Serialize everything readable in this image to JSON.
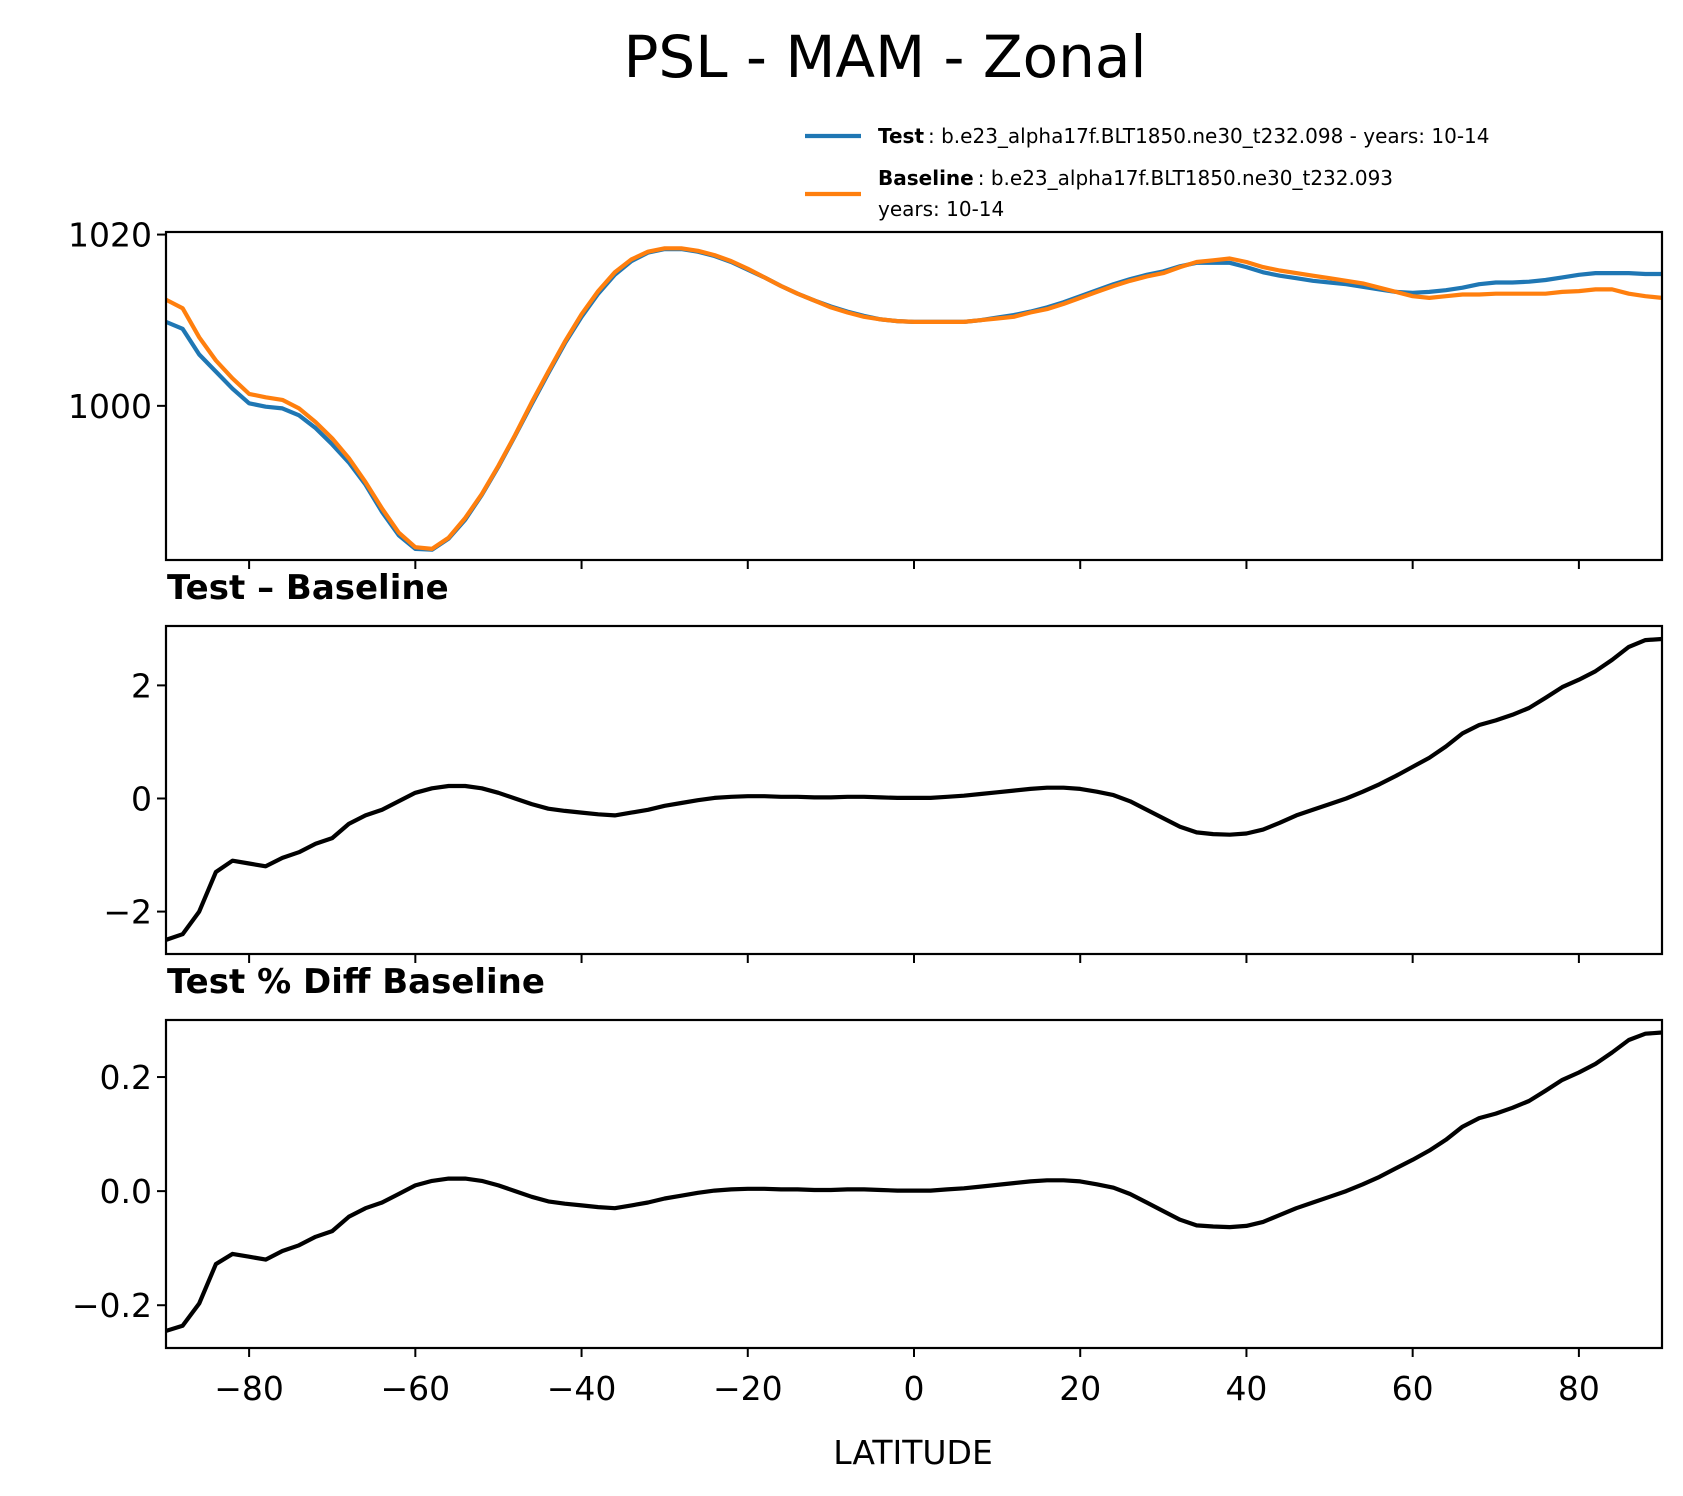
{
  "chart_data": [
    {
      "type": "line",
      "id": "abs",
      "title": "PSL - MAM - Zonal",
      "xlabel": "",
      "ylabel": "",
      "xlim": [
        -90,
        90
      ],
      "ylim": [
        982,
        1020.3
      ],
      "yticks": [
        1000,
        1020
      ],
      "ytick_labels": [
        "1000",
        "1020"
      ],
      "xticks": [
        -80,
        -60,
        -40,
        -20,
        0,
        20,
        40,
        60,
        80
      ],
      "legend": {
        "placement": "upper-right, above plot",
        "entries": [
          {
            "label_bold": "Test",
            "label": ": b.e23_alpha17f.BLT1850.ne30_t232.098 - years: 10-14",
            "label_line2": ""
          },
          {
            "label_bold": "Baseline",
            "label": ": b.e23_alpha17f.BLT1850.ne30_t232.093",
            "label_line2": "years: 10-14"
          }
        ]
      },
      "x": [
        -90,
        -88,
        -86,
        -84,
        -82,
        -80,
        -78,
        -76,
        -74,
        -72,
        -70,
        -68,
        -66,
        -64,
        -62,
        -60,
        -58,
        -56,
        -54,
        -52,
        -50,
        -48,
        -46,
        -44,
        -42,
        -40,
        -38,
        -36,
        -34,
        -32,
        -30,
        -28,
        -26,
        -24,
        -22,
        -20,
        -18,
        -16,
        -14,
        -12,
        -10,
        -8,
        -6,
        -4,
        -2,
        0,
        2,
        4,
        6,
        8,
        10,
        12,
        14,
        16,
        18,
        20,
        22,
        24,
        26,
        28,
        30,
        32,
        34,
        36,
        38,
        40,
        42,
        44,
        46,
        48,
        50,
        52,
        54,
        56,
        58,
        60,
        62,
        64,
        66,
        68,
        70,
        72,
        74,
        76,
        78,
        80,
        82,
        84,
        86,
        88,
        90
      ],
      "series": [
        {
          "name": "Test",
          "color": "#1f77b4",
          "values": [
            1009.8,
            1009.0,
            1006.0,
            1004.0,
            1002.0,
            1000.3,
            999.9,
            999.7,
            998.9,
            997.4,
            995.5,
            993.4,
            990.8,
            987.6,
            984.9,
            983.3,
            983.2,
            984.5,
            986.7,
            989.6,
            992.9,
            996.5,
            1000.2,
            1003.8,
            1007.3,
            1010.4,
            1013.1,
            1015.3,
            1016.9,
            1017.9,
            1018.3,
            1018.3,
            1018.0,
            1017.5,
            1016.8,
            1015.9,
            1015.0,
            1014.0,
            1013.1,
            1012.3,
            1011.6,
            1011.0,
            1010.5,
            1010.1,
            1009.9,
            1009.8,
            1009.8,
            1009.8,
            1009.8,
            1010.0,
            1010.3,
            1010.6,
            1011.0,
            1011.5,
            1012.1,
            1012.8,
            1013.5,
            1014.2,
            1014.8,
            1015.3,
            1015.7,
            1016.3,
            1016.7,
            1016.7,
            1016.7,
            1016.2,
            1015.6,
            1015.2,
            1014.9,
            1014.6,
            1014.4,
            1014.2,
            1013.9,
            1013.6,
            1013.3,
            1013.2,
            1013.3,
            1013.5,
            1013.8,
            1014.2,
            1014.4,
            1014.4,
            1014.5,
            1014.7,
            1015.0,
            1015.3,
            1015.5,
            1015.5,
            1015.5,
            1015.4,
            1015.4
          ]
        },
        {
          "name": "Baseline",
          "color": "#ff7f0e",
          "values": [
            1012.4,
            1011.4,
            1008.0,
            1005.3,
            1003.2,
            1001.4,
            1001.0,
            1000.7,
            999.7,
            998.1,
            996.2,
            993.9,
            991.1,
            988.0,
            985.2,
            983.5,
            983.3,
            984.6,
            986.9,
            989.7,
            993.0,
            996.6,
            1000.4,
            1004.0,
            1007.5,
            1010.7,
            1013.4,
            1015.6,
            1017.1,
            1018.0,
            1018.4,
            1018.4,
            1018.1,
            1017.6,
            1016.9,
            1016.0,
            1015.0,
            1014.0,
            1013.1,
            1012.3,
            1011.5,
            1010.9,
            1010.4,
            1010.1,
            1009.9,
            1009.8,
            1009.8,
            1009.8,
            1009.8,
            1010.0,
            1010.2,
            1010.4,
            1010.9,
            1011.3,
            1011.9,
            1012.6,
            1013.3,
            1014.0,
            1014.6,
            1015.1,
            1015.5,
            1016.2,
            1016.8,
            1017.0,
            1017.2,
            1016.8,
            1016.2,
            1015.8,
            1015.5,
            1015.2,
            1014.9,
            1014.6,
            1014.3,
            1013.8,
            1013.3,
            1012.8,
            1012.6,
            1012.8,
            1013.0,
            1013.0,
            1013.1,
            1013.1,
            1013.1,
            1013.1,
            1013.3,
            1013.4,
            1013.6,
            1013.6,
            1013.1,
            1012.8,
            1012.6
          ]
        }
      ]
    },
    {
      "type": "line",
      "id": "diff",
      "title": "Test – Baseline",
      "xlim": [
        -90,
        90
      ],
      "ylim": [
        -2.75,
        3.05
      ],
      "yticks": [
        -2,
        0,
        2
      ],
      "ytick_labels": [
        "−2",
        "0",
        "2"
      ],
      "xticks": [
        -80,
        -60,
        -40,
        -20,
        0,
        20,
        40,
        60,
        80
      ],
      "x": [
        -90,
        -88,
        -86,
        -84,
        -82,
        -80,
        -78,
        -76,
        -74,
        -72,
        -70,
        -68,
        -66,
        -64,
        -62,
        -60,
        -58,
        -56,
        -54,
        -52,
        -50,
        -48,
        -46,
        -44,
        -42,
        -40,
        -38,
        -36,
        -34,
        -32,
        -30,
        -28,
        -26,
        -24,
        -22,
        -20,
        -18,
        -16,
        -14,
        -12,
        -10,
        -8,
        -6,
        -4,
        -2,
        0,
        2,
        4,
        6,
        8,
        10,
        12,
        14,
        16,
        18,
        20,
        22,
        24,
        26,
        28,
        30,
        32,
        34,
        36,
        38,
        40,
        42,
        44,
        46,
        48,
        50,
        52,
        54,
        56,
        58,
        60,
        62,
        64,
        66,
        68,
        70,
        72,
        74,
        76,
        78,
        80,
        82,
        84,
        86,
        88,
        90
      ],
      "series": [
        {
          "name": "Test – Baseline",
          "color": "#000000",
          "values": [
            -2.5,
            -2.4,
            -2.0,
            -1.3,
            -1.1,
            -1.15,
            -1.2,
            -1.05,
            -0.95,
            -0.8,
            -0.7,
            -0.45,
            -0.3,
            -0.2,
            -0.05,
            0.1,
            0.18,
            0.22,
            0.22,
            0.18,
            0.1,
            0.0,
            -0.1,
            -0.18,
            -0.22,
            -0.25,
            -0.28,
            -0.3,
            -0.25,
            -0.2,
            -0.13,
            -0.08,
            -0.03,
            0.01,
            0.03,
            0.04,
            0.04,
            0.03,
            0.03,
            0.02,
            0.02,
            0.03,
            0.03,
            0.02,
            0.01,
            0.01,
            0.01,
            0.03,
            0.05,
            0.08,
            0.11,
            0.14,
            0.17,
            0.19,
            0.19,
            0.17,
            0.12,
            0.06,
            -0.05,
            -0.2,
            -0.35,
            -0.5,
            -0.6,
            -0.63,
            -0.64,
            -0.62,
            -0.55,
            -0.43,
            -0.3,
            -0.2,
            -0.1,
            0.0,
            0.12,
            0.25,
            0.4,
            0.56,
            0.72,
            0.92,
            1.15,
            1.3,
            1.38,
            1.48,
            1.6,
            1.78,
            1.97,
            2.1,
            2.25,
            2.45,
            2.68,
            2.8,
            2.82
          ]
        }
      ]
    },
    {
      "type": "line",
      "id": "pct",
      "title": "Test % Diff Baseline",
      "xlabel": "LATITUDE",
      "xlim": [
        -90,
        90
      ],
      "ylim": [
        -0.275,
        0.3
      ],
      "yticks": [
        -0.2,
        0.0,
        0.2
      ],
      "ytick_labels": [
        "−0.2",
        "0.0",
        "0.2"
      ],
      "xticks": [
        -80,
        -60,
        -40,
        -20,
        0,
        20,
        40,
        60,
        80
      ],
      "xtick_labels": [
        "−80",
        "−60",
        "−40",
        "−20",
        "0",
        "20",
        "40",
        "60",
        "80"
      ],
      "x": [
        -90,
        -88,
        -86,
        -84,
        -82,
        -80,
        -78,
        -76,
        -74,
        -72,
        -70,
        -68,
        -66,
        -64,
        -62,
        -60,
        -58,
        -56,
        -54,
        -52,
        -50,
        -48,
        -46,
        -44,
        -42,
        -40,
        -38,
        -36,
        -34,
        -32,
        -30,
        -28,
        -26,
        -24,
        -22,
        -20,
        -18,
        -16,
        -14,
        -12,
        -10,
        -8,
        -6,
        -4,
        -2,
        0,
        2,
        4,
        6,
        8,
        10,
        12,
        14,
        16,
        18,
        20,
        22,
        24,
        26,
        28,
        30,
        32,
        34,
        36,
        38,
        40,
        42,
        44,
        46,
        48,
        50,
        52,
        54,
        56,
        58,
        60,
        62,
        64,
        66,
        68,
        70,
        72,
        74,
        76,
        78,
        80,
        82,
        84,
        86,
        88,
        90
      ],
      "series": [
        {
          "name": "Test % Diff Baseline",
          "color": "#000000",
          "values": [
            -0.245,
            -0.236,
            -0.197,
            -0.128,
            -0.11,
            -0.115,
            -0.12,
            -0.105,
            -0.095,
            -0.08,
            -0.07,
            -0.045,
            -0.03,
            -0.02,
            -0.005,
            0.01,
            0.018,
            0.022,
            0.022,
            0.018,
            0.01,
            0.0,
            -0.01,
            -0.018,
            -0.022,
            -0.025,
            -0.028,
            -0.03,
            -0.025,
            -0.02,
            -0.013,
            -0.008,
            -0.003,
            0.001,
            0.003,
            0.004,
            0.004,
            0.003,
            0.003,
            0.002,
            0.002,
            0.003,
            0.003,
            0.002,
            0.001,
            0.001,
            0.001,
            0.003,
            0.005,
            0.008,
            0.011,
            0.014,
            0.017,
            0.019,
            0.019,
            0.017,
            0.012,
            0.006,
            -0.005,
            -0.02,
            -0.035,
            -0.05,
            -0.06,
            -0.062,
            -0.063,
            -0.061,
            -0.054,
            -0.042,
            -0.03,
            -0.02,
            -0.01,
            0.0,
            0.012,
            0.025,
            0.04,
            0.055,
            0.071,
            0.09,
            0.113,
            0.128,
            0.136,
            0.146,
            0.158,
            0.176,
            0.195,
            0.208,
            0.223,
            0.243,
            0.265,
            0.276,
            0.278
          ]
        }
      ]
    }
  ]
}
